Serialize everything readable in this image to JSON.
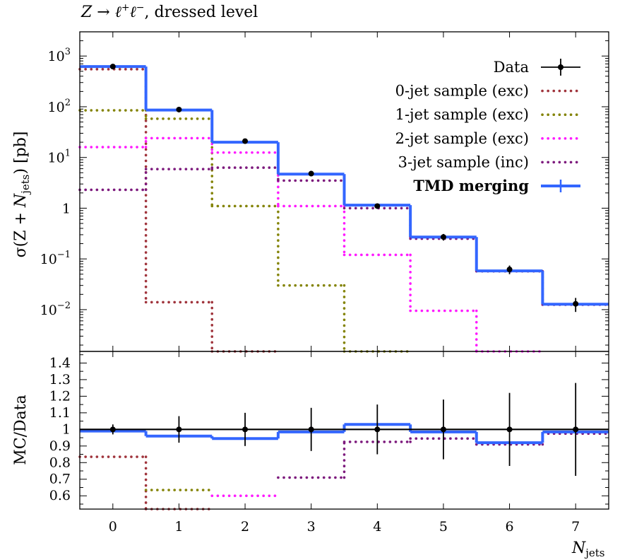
{
  "title": "Z → ℓ⁺ℓ⁻, dressed level",
  "title_parts": {
    "lead": "Z → ℓ",
    "sup1": "+",
    "mid": "ℓ",
    "sup2": "−",
    "tail": ", dressed level"
  },
  "colors": {
    "data": "#000000",
    "jet0": "#a0343c",
    "jet1": "#848408",
    "jet2": "#ff1aff",
    "jet3": "#7d1a7d",
    "tmd": "#3366ff"
  },
  "chart_data": [
    {
      "type": "line",
      "panel": "main",
      "ylabel": "σ(Z + N_jets) [pb]",
      "ylabel_parts": {
        "lead": "σ(Z + ",
        "n": "N",
        "sub": "jets",
        "tail": ") [pb]"
      },
      "yscale": "log",
      "ylim": [
        0.0015,
        3000
      ],
      "xlim": [
        -0.5,
        7.5
      ],
      "yticks": [
        {
          "value": 1000,
          "base": "10",
          "exp": "3"
        },
        {
          "value": 100,
          "base": "10",
          "exp": "2"
        },
        {
          "value": 10,
          "base": "10",
          "exp": "1"
        },
        {
          "value": 1,
          "base": "1",
          "exp": ""
        },
        {
          "value": 0.1,
          "base": "10",
          "exp": "−1"
        },
        {
          "value": 0.01,
          "base": "10",
          "exp": "−2"
        }
      ],
      "data_points": {
        "name": "Data",
        "x": [
          0,
          1,
          2,
          3,
          4,
          5,
          6,
          7
        ],
        "y": [
          620,
          88,
          21,
          4.8,
          1.1,
          0.27,
          0.062,
          0.013
        ],
        "err_low": [
          40,
          6,
          1.5,
          0.4,
          0.12,
          0.04,
          0.012,
          0.004
        ],
        "err_high": [
          40,
          6,
          1.5,
          0.4,
          0.12,
          0.04,
          0.012,
          0.004
        ]
      },
      "series": [
        {
          "name": "0-jet sample (exc)",
          "key": "jet0",
          "style": "dotted",
          "values": [
            550,
            0.014,
            0.0001,
            null,
            null,
            null,
            null,
            null
          ]
        },
        {
          "name": "1-jet sample (exc)",
          "key": "jet1",
          "style": "dotted",
          "values": [
            85,
            58,
            1.1,
            0.03,
            0.0001,
            null,
            null,
            null
          ]
        },
        {
          "name": "2-jet sample (exc)",
          "key": "jet2",
          "style": "dotted",
          "values": [
            16,
            24,
            12.5,
            1.1,
            0.12,
            0.0095,
            0.0001,
            null
          ]
        },
        {
          "name": "3-jet sample (inc)",
          "key": "jet3",
          "style": "dotted",
          "values": [
            2.3,
            5.9,
            6.3,
            3.5,
            1.0,
            0.25,
            0.057,
            0.0125
          ]
        },
        {
          "name": "TMD merging",
          "key": "tmd",
          "style": "solid",
          "bold": true,
          "values": [
            620,
            86,
            20,
            4.7,
            1.15,
            0.27,
            0.058,
            0.0128
          ]
        }
      ],
      "legend": [
        {
          "label": "Data",
          "key": "data",
          "style": "marker",
          "bold": false
        },
        {
          "label": "0-jet sample (exc)",
          "key": "jet0",
          "style": "dotted",
          "bold": false
        },
        {
          "label": "1-jet sample (exc)",
          "key": "jet1",
          "style": "dotted",
          "bold": false
        },
        {
          "label": "2-jet sample (exc)",
          "key": "jet2",
          "style": "dotted",
          "bold": false
        },
        {
          "label": "3-jet sample (inc)",
          "key": "jet3",
          "style": "dotted",
          "bold": false
        },
        {
          "label": "TMD merging",
          "key": "tmd",
          "style": "solid",
          "bold": true
        }
      ],
      "legend_position": "top-right"
    },
    {
      "type": "line",
      "panel": "ratio",
      "ylabel": "MC/Data",
      "ylim": [
        0.52,
        1.47
      ],
      "xlim": [
        -0.5,
        7.5
      ],
      "yticks": [
        0.6,
        0.7,
        0.8,
        0.9,
        1,
        1.1,
        1.2,
        1.3,
        1.4
      ],
      "ytick_labels": [
        "0.6",
        "0.7",
        "0.8",
        "0.9",
        "1",
        "1.1",
        "1.2",
        "1.3",
        "1.4"
      ],
      "xlabel": "N_jets",
      "xlabel_parts": {
        "n": "N",
        "sub": "jets"
      },
      "xticks": [
        0,
        1,
        2,
        3,
        4,
        5,
        6,
        7
      ],
      "xtick_labels": [
        "0",
        "1",
        "2",
        "3",
        "4",
        "5",
        "6",
        "7"
      ],
      "data_points": {
        "name": "Data",
        "x": [
          0,
          1,
          2,
          3,
          4,
          5,
          6,
          7
        ],
        "y": [
          1,
          1,
          1,
          1,
          1,
          1,
          1,
          1
        ],
        "err": [
          0.03,
          0.08,
          0.1,
          0.13,
          0.15,
          0.18,
          0.22,
          0.28
        ]
      },
      "series": [
        {
          "name": "0-jet sample (exc)",
          "key": "jet0",
          "style": "dotted",
          "values": [
            0.835,
            0.3,
            null,
            null,
            null,
            null,
            null,
            null
          ]
        },
        {
          "name": "1-jet sample (exc)",
          "key": "jet1",
          "style": "dotted",
          "values": [
            null,
            0.635,
            null,
            null,
            null,
            null,
            null,
            null
          ]
        },
        {
          "name": "2-jet sample (exc)",
          "key": "jet2",
          "style": "dotted",
          "values": [
            null,
            null,
            0.6,
            null,
            null,
            null,
            null,
            null
          ]
        },
        {
          "name": "3-jet sample (inc)",
          "key": "jet3",
          "style": "dotted",
          "values": [
            null,
            null,
            null,
            0.71,
            0.925,
            0.945,
            0.91,
            0.975
          ]
        },
        {
          "name": "TMD merging",
          "key": "tmd",
          "style": "solid",
          "values": [
            0.99,
            0.96,
            0.945,
            0.985,
            1.03,
            0.985,
            0.92,
            0.985
          ]
        }
      ]
    }
  ]
}
